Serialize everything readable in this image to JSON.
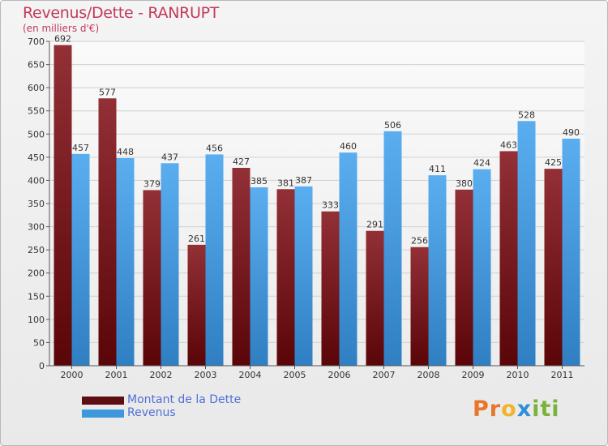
{
  "header": {
    "title": "Revenus/Dette - RANRUPT",
    "subtitle": "(en milliers d'€)"
  },
  "colors": {
    "debt": "#7b1e24",
    "revenue": "#4ea0e0",
    "title": "#c23a5a",
    "legend_text": "#4f6fd8",
    "axis": "#444444"
  },
  "legend": {
    "items": [
      {
        "label": "Montant de la Dette",
        "color": "#5e0d12"
      },
      {
        "label": "Revenus",
        "color": "#3f98dc"
      }
    ]
  },
  "logo": {
    "letters": [
      "P",
      "r",
      "o",
      "x",
      "i",
      "t",
      "i"
    ],
    "colors": [
      "#e8762b",
      "#e8762b",
      "#f2b32a",
      "#2f8fd8",
      "#7ab33b",
      "#7ab33b",
      "#7ab33b"
    ]
  },
  "chart_data": {
    "type": "bar",
    "title": "Revenus/Dette - RANRUPT",
    "subtitle": "(en milliers d'€)",
    "categories": [
      "2000",
      "2001",
      "2002",
      "2003",
      "2004",
      "2005",
      "2006",
      "2007",
      "2008",
      "2009",
      "2010",
      "2011"
    ],
    "series": [
      {
        "name": "Montant de la Dette",
        "values": [
          692,
          577,
          379,
          261,
          427,
          381,
          333,
          291,
          256,
          380,
          463,
          425
        ]
      },
      {
        "name": "Revenus",
        "values": [
          457,
          448,
          437,
          456,
          385,
          387,
          460,
          506,
          411,
          424,
          528,
          490
        ]
      }
    ],
    "ylim": [
      0,
      700
    ],
    "yticks": [
      0,
      50,
      100,
      150,
      200,
      250,
      300,
      350,
      400,
      450,
      500,
      550,
      600,
      650,
      700
    ],
    "grid": true,
    "legend_position": "bottom-left"
  }
}
